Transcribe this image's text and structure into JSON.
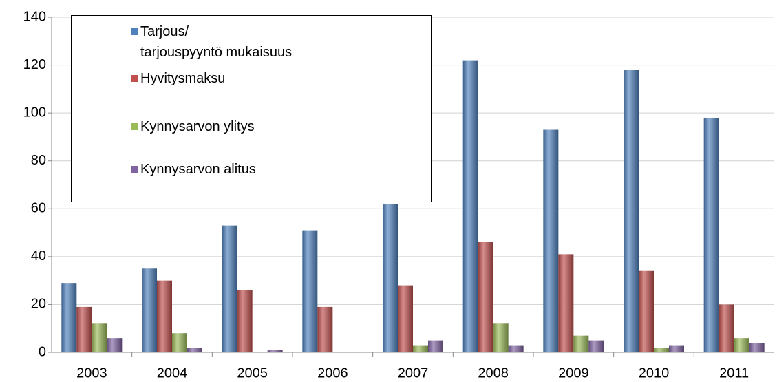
{
  "chart_data": {
    "type": "bar",
    "categories": [
      "2003",
      "2004",
      "2005",
      "2006",
      "2007",
      "2008",
      "2009",
      "2010",
      "2011"
    ],
    "series": [
      {
        "name": "Tarjous/\ntarjouspyyntö mukaisuus",
        "color": "#4f81bd",
        "values": [
          29,
          35,
          53,
          51,
          62,
          122,
          93,
          118,
          98
        ]
      },
      {
        "name": "Hyvitysmaksu",
        "color": "#c0504d",
        "values": [
          19,
          30,
          26,
          19,
          28,
          46,
          41,
          34,
          20
        ]
      },
      {
        "name": "Kynnysarvon ylitys",
        "color": "#9bbb59",
        "values": [
          12,
          8,
          0,
          0,
          3,
          12,
          7,
          2,
          6
        ]
      },
      {
        "name": "Kynnysarvon alitus",
        "color": "#8064a2",
        "values": [
          6,
          2,
          1,
          0,
          5,
          3,
          5,
          3,
          4
        ]
      }
    ],
    "ylim": [
      0,
      140
    ],
    "yticks": [
      0,
      20,
      40,
      60,
      80,
      100,
      120,
      140
    ],
    "grid": true
  }
}
